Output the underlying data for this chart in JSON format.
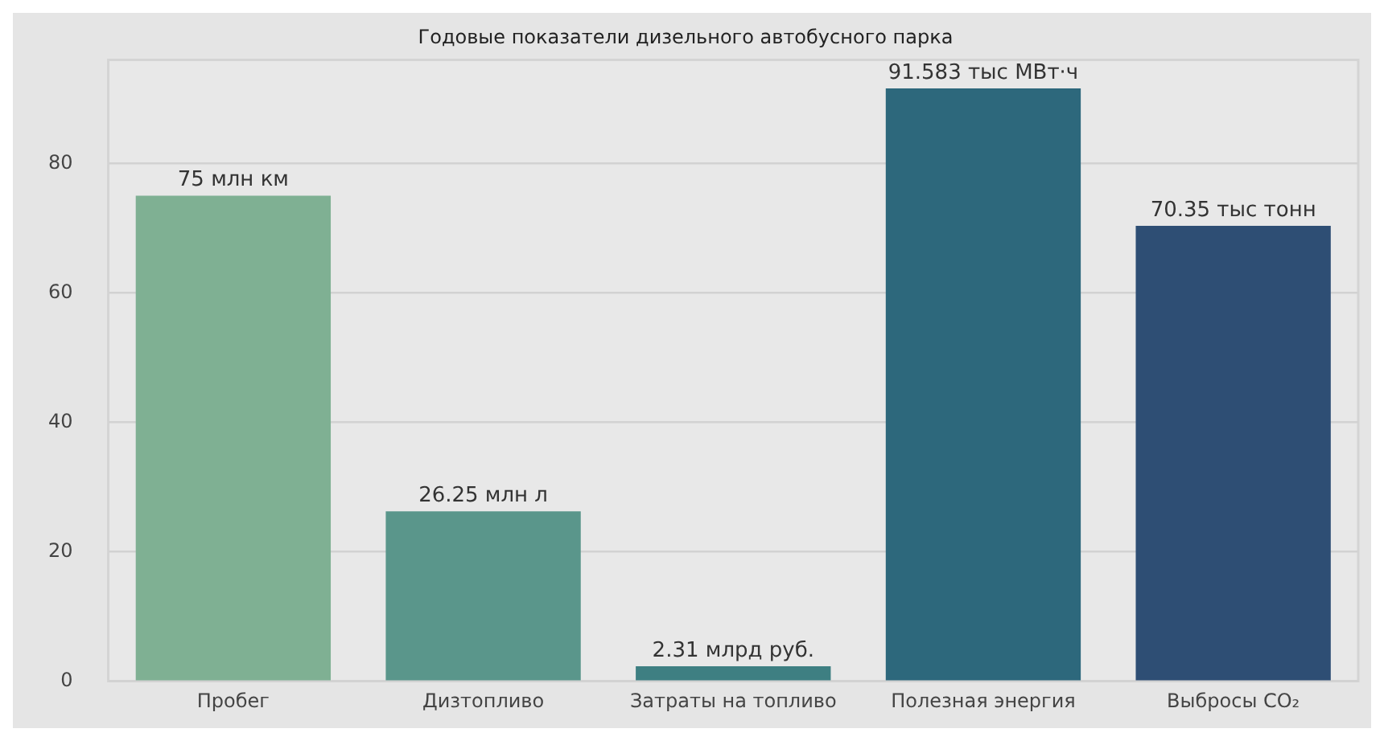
{
  "chart_data": {
    "type": "bar",
    "title": "Годовые показатели дизельного автобусного парка",
    "categories": [
      "Пробег",
      "Дизтопливо",
      "Затраты на топливо",
      "Полезная энергия",
      "Выбросы CO₂"
    ],
    "values": [
      75,
      26.25,
      2.31,
      91.583,
      70.35
    ],
    "colors": [
      "#7fb093",
      "#5a968b",
      "#3e7f82",
      "#2d687c",
      "#2e4e74"
    ],
    "value_labels": [
      "75 млн км",
      "26.25 млн л",
      "2.31 млрд руб.",
      "91.583 тыс МВт·ч",
      "70.35 тыс тонн"
    ],
    "ylim": [
      0,
      96
    ],
    "yticks": [
      0,
      20,
      40,
      60,
      80
    ],
    "grid": "y",
    "legend": false
  }
}
